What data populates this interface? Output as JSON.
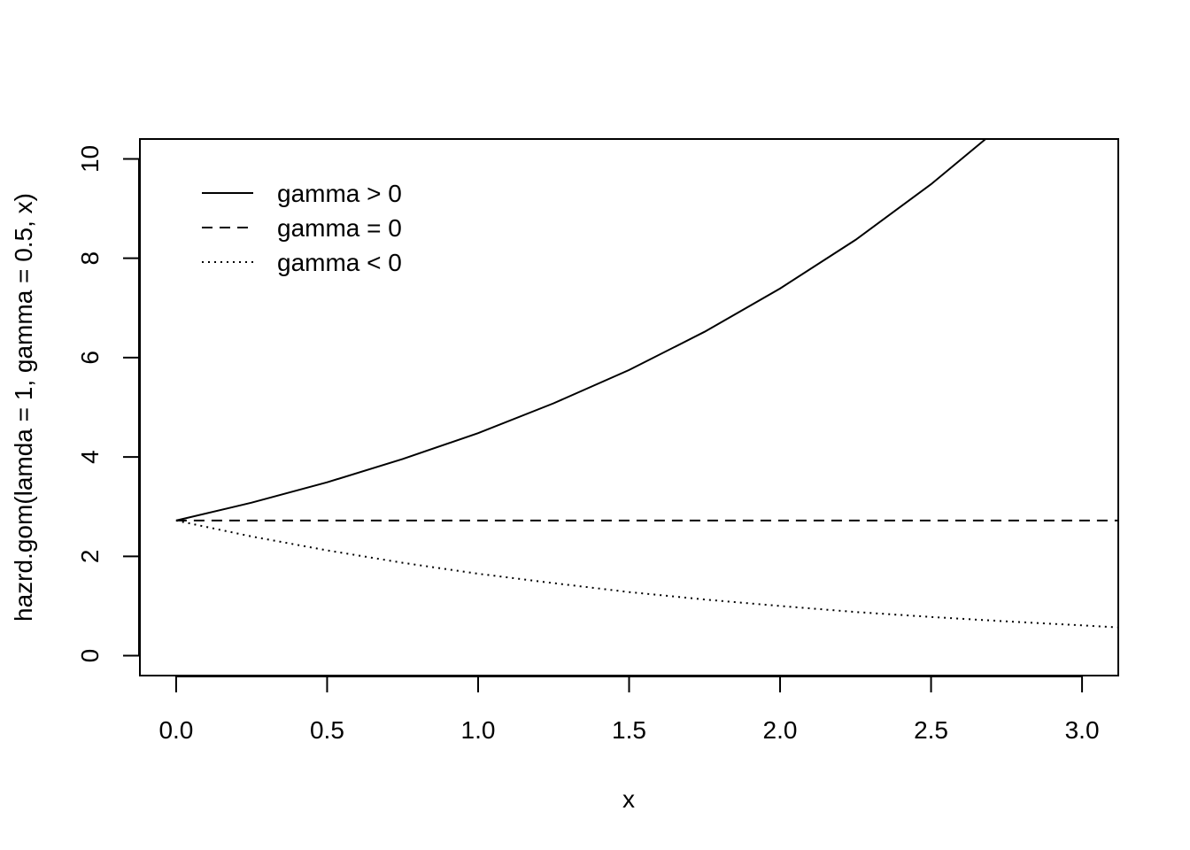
{
  "chart_data": {
    "type": "line",
    "title": "",
    "xlabel": "x",
    "ylabel": "hazrd.gom(lamda = 1, gamma = 0.5, x)",
    "xlim": [
      -0.12,
      3.12
    ],
    "ylim": [
      -0.4,
      10.4
    ],
    "xticks": [
      0.0,
      0.5,
      1.0,
      1.5,
      2.0,
      2.5,
      3.0
    ],
    "xtick_labels": [
      "0.0",
      "0.5",
      "1.0",
      "1.5",
      "2.0",
      "2.5",
      "3.0"
    ],
    "yticks": [
      0,
      2,
      4,
      6,
      8,
      10
    ],
    "ytick_labels": [
      "0",
      "2",
      "4",
      "6",
      "8",
      "10"
    ],
    "grid": false,
    "legend_position": "top-left",
    "x": [
      0.0,
      0.25,
      0.5,
      0.75,
      1.0,
      1.25,
      1.5,
      1.75,
      2.0,
      2.25,
      2.5,
      2.75,
      3.0,
      3.12
    ],
    "series": [
      {
        "name": "gamma > 0",
        "line_style": "solid",
        "color": "#000000",
        "values": [
          2.72,
          3.08,
          3.49,
          3.96,
          4.48,
          5.08,
          5.75,
          6.52,
          7.39,
          8.37,
          9.49,
          10.75,
          null,
          null
        ]
      },
      {
        "name": "gamma = 0",
        "line_style": "dashed",
        "color": "#000000",
        "values": [
          2.72,
          2.72,
          2.72,
          2.72,
          2.72,
          2.72,
          2.72,
          2.72,
          2.72,
          2.72,
          2.72,
          2.72,
          2.72,
          2.72
        ]
      },
      {
        "name": "gamma < 0",
        "line_style": "dotted",
        "color": "#000000",
        "values": [
          2.72,
          2.4,
          2.12,
          1.87,
          1.65,
          1.46,
          1.28,
          1.13,
          1.0,
          0.88,
          0.78,
          0.69,
          0.61,
          0.57
        ]
      }
    ]
  }
}
